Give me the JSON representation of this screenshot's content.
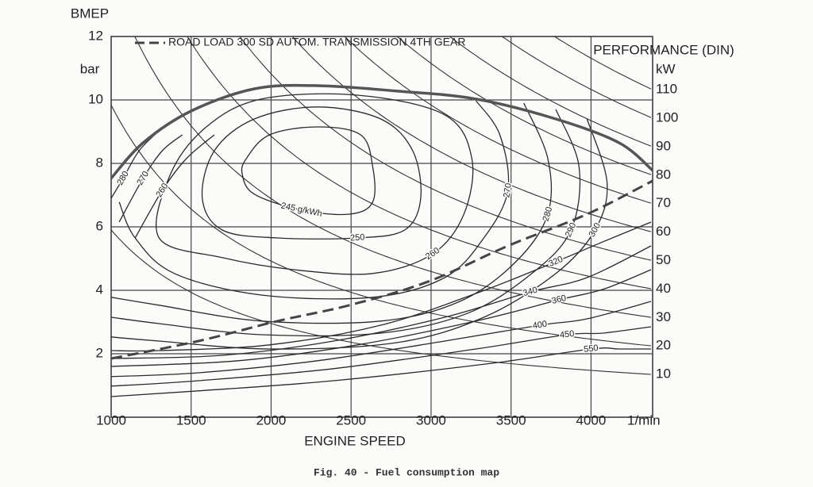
{
  "chart_data": {
    "type": "contour",
    "y_label": "BMEP",
    "y_unit": "bar",
    "y2_label": "PERFORMANCE (DIN)",
    "y2_unit": "kW",
    "x_label": "ENGINE SPEED",
    "x_unit": "1/min",
    "caption": "Fig. 40 - Fuel consumption map",
    "xlim": [
      1000,
      4385
    ],
    "xticks": [
      1000,
      1500,
      2000,
      2500,
      3000,
      3500,
      4000
    ],
    "ylim": [
      0,
      12
    ],
    "yticks": [
      2,
      4,
      6,
      8,
      10,
      12
    ],
    "y2lim": [
      -5,
      128.7
    ],
    "y2ticks": [
      10,
      20,
      30,
      40,
      50,
      60,
      70,
      80,
      90,
      100,
      110
    ],
    "grid": true,
    "full_load": {
      "x": [
        1000,
        1200,
        1500,
        1895,
        2290,
        2785,
        3280,
        3780,
        4175,
        4385
      ],
      "y": [
        7.53,
        8.65,
        9.65,
        10.35,
        10.45,
        10.28,
        10.03,
        9.4,
        8.65,
        7.78
      ]
    },
    "road_load": {
      "name": "ROAD LOAD 300 SD  AUTOM. TRANSMISSION 4TH GEAR",
      "dashed": true,
      "x": [
        1000,
        1545,
        2040,
        2490,
        2985,
        3480,
        3975,
        4385
      ],
      "y": [
        1.85,
        2.4,
        3.03,
        3.53,
        4.28,
        5.4,
        6.4,
        7.45
      ]
    },
    "contours": [
      {
        "label": "245 g/kWh",
        "closed": true,
        "x": [
          1845,
          1990,
          2290,
          2560,
          2635,
          2635,
          2490,
          2190,
          1895,
          1820
        ],
        "y": [
          8.15,
          8.9,
          9.15,
          8.9,
          7.9,
          6.78,
          6.4,
          6.53,
          7.03,
          7.65
        ]
      },
      {
        "label": "250",
        "closed": true,
        "x": [
          1570,
          1645,
          1895,
          2290,
          2685,
          2885,
          2935,
          2835,
          2540,
          2040,
          1695
        ],
        "y": [
          6.9,
          8.4,
          9.4,
          9.78,
          9.4,
          8.4,
          6.9,
          5.9,
          5.65,
          5.65,
          5.9
        ]
      },
      {
        "label": "260",
        "closed": true,
        "x": [
          1300,
          1370,
          1595,
          1940,
          2540,
          3085,
          3255,
          3205,
          3010,
          2635,
          2140,
          1695
        ],
        "y": [
          5.65,
          7.65,
          9.15,
          10.03,
          10.15,
          9.53,
          8.15,
          6.4,
          5.15,
          4.53,
          4.65,
          5.03
        ]
      },
      {
        "label": "270",
        "closed": false,
        "x": [
          3280,
          3430,
          3480,
          3330,
          3085,
          2635,
          1940,
          1395,
          1150,
          1050
        ],
        "y": [
          9.98,
          8.9,
          7.15,
          5.65,
          4.4,
          3.78,
          3.85,
          4.53,
          5.65,
          6.78
        ]
      },
      {
        "label": "280",
        "closed": false,
        "x": [
          3580,
          3730,
          3730,
          3530,
          3180,
          2685,
          1940,
          1300,
          1000
        ],
        "y": [
          9.9,
          8.15,
          6.4,
          4.9,
          3.65,
          3.03,
          3.03,
          3.53,
          3.78
        ]
      },
      {
        "label": "290",
        "closed": false,
        "x": [
          3780,
          3925,
          3875,
          3630,
          3230,
          2685,
          1940,
          1300,
          1000
        ],
        "y": [
          9.7,
          7.9,
          5.9,
          4.53,
          3.28,
          2.65,
          2.6,
          2.95,
          3.15
        ]
      },
      {
        "label": "300",
        "closed": false,
        "x": [
          3975,
          4100,
          4025,
          3780,
          3330,
          2785,
          1990,
          1300,
          1000
        ],
        "y": [
          9.4,
          7.4,
          5.9,
          4.53,
          3.15,
          2.35,
          2.15,
          2.4,
          2.53
        ]
      },
      {
        "label": "320",
        "closed": false,
        "x": [
          4375,
          4075,
          3780,
          3280,
          2685,
          1990,
          1300,
          1000
        ],
        "y": [
          6.15,
          5.53,
          4.9,
          3.9,
          2.9,
          2.28,
          2.1,
          2.1
        ]
      },
      {
        "label": "340",
        "closed": false,
        "x": [
          4375,
          3975,
          3620,
          3085,
          2390,
          1695,
          1000
        ],
        "y": [
          5.4,
          4.4,
          3.95,
          3.15,
          2.4,
          1.95,
          1.85
        ]
      },
      {
        "label": "360",
        "closed": false,
        "x": [
          4375,
          4075,
          3800,
          3280,
          2540,
          1795,
          1000
        ],
        "y": [
          4.65,
          4.03,
          3.7,
          3.03,
          2.28,
          1.78,
          1.6
        ]
      },
      {
        "label": "400",
        "closed": false,
        "x": [
          4375,
          3975,
          3680,
          3085,
          2290,
          1545,
          1000
        ],
        "y": [
          3.65,
          3.1,
          2.9,
          2.4,
          1.78,
          1.4,
          1.28
        ]
      },
      {
        "label": "450",
        "closed": false,
        "x": [
          4375,
          4075,
          3850,
          3280,
          2390,
          1545,
          1000
        ],
        "y": [
          2.85,
          2.65,
          2.6,
          2.15,
          1.53,
          1.15,
          0.98
        ]
      },
      {
        "label": "550",
        "closed": false,
        "x": [
          4375,
          4175,
          4000,
          3380,
          2390,
          1545,
          1000
        ],
        "y": [
          2.15,
          2.15,
          2.15,
          1.7,
          1.15,
          0.83,
          0.65
        ]
      },
      {
        "label": "280",
        "closed": false,
        "x": [
          1000,
          1075,
          1175,
          1300
        ],
        "y": [
          6.9,
          7.53,
          8.4,
          9.03
        ]
      },
      {
        "label": "270",
        "closed": false,
        "x": [
          1050,
          1200,
          1320,
          1445
        ],
        "y": [
          6.15,
          7.53,
          8.4,
          8.9
        ]
      },
      {
        "label": "260",
        "closed": false,
        "x": [
          1150,
          1320,
          1470,
          1645
        ],
        "y": [
          5.65,
          7.15,
          8.15,
          8.9
        ]
      }
    ]
  }
}
